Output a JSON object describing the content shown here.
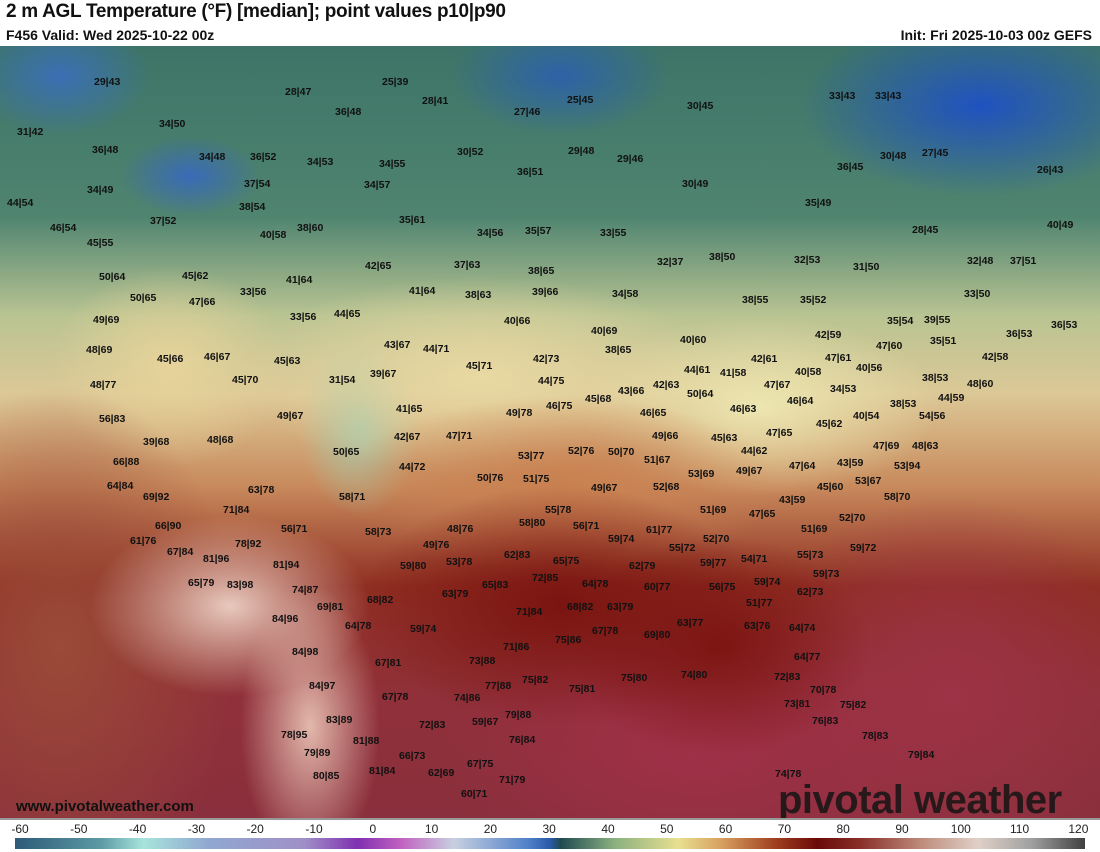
{
  "header": {
    "title": "2 m AGL Temperature (°F) [median]; point values p10|p90",
    "valid": "F456 Valid: Wed 2025-10-22 00z",
    "init": "Init: Fri 2025-10-03 00z GEFS"
  },
  "footer": {
    "url": "www.pivotalweather.com",
    "watermark": "pivotal weather"
  },
  "colorbar": {
    "unit": "°F",
    "ticks": [
      "-60",
      "-50",
      "-40",
      "-30",
      "-20",
      "-10",
      "0",
      "10",
      "20",
      "30",
      "40",
      "50",
      "60",
      "70",
      "80",
      "90",
      "100",
      "110",
      "120"
    ]
  },
  "points": [
    "29|43",
    "28|47",
    "25|39",
    "28|41",
    "36|48",
    "27|46",
    "25|45",
    "30|45",
    "33|43",
    "33|43",
    "31|42",
    "34|50",
    "36|48",
    "30|52",
    "29|48",
    "29|46",
    "34|48",
    "36|52",
    "34|53",
    "34|55",
    "36|45",
    "30|48",
    "27|45",
    "26|43",
    "36|51",
    "34|49",
    "37|54",
    "34|57",
    "30|49",
    "44|54",
    "38|54",
    "35|49",
    "37|52",
    "35|61",
    "40|49",
    "46|54",
    "40|58",
    "38|60",
    "34|56",
    "35|57",
    "33|55",
    "28|45",
    "45|55",
    "32|48",
    "37|51",
    "37|63",
    "42|65",
    "38|65",
    "32|37",
    "38|50",
    "32|53",
    "31|50",
    "50|64",
    "45|62",
    "41|64",
    "41|64",
    "38|63",
    "39|66",
    "34|58",
    "33|50",
    "50|65",
    "47|66",
    "33|56",
    "38|55",
    "35|52",
    "49|69",
    "33|56",
    "44|65",
    "40|66",
    "40|69",
    "35|54",
    "39|55",
    "36|53",
    "36|53",
    "42|59",
    "48|69",
    "45|66",
    "46|67",
    "43|67",
    "44|71",
    "40|60",
    "47|60",
    "35|51",
    "42|58",
    "45|63",
    "45|71",
    "42|73",
    "38|65",
    "42|61",
    "47|61",
    "40|56",
    "48|77",
    "45|70",
    "31|54",
    "39|67",
    "44|75",
    "44|61",
    "41|58",
    "40|58",
    "47|67",
    "34|53",
    "38|53",
    "48|60",
    "43|66",
    "42|63",
    "45|68",
    "50|64",
    "44|59",
    "46|64",
    "56|83",
    "49|67",
    "41|65",
    "49|78",
    "46|75",
    "46|65",
    "46|63",
    "40|54",
    "38|53",
    "54|56",
    "45|62",
    "39|68",
    "48|68",
    "42|67",
    "47|71",
    "49|66",
    "45|63",
    "47|65",
    "47|69",
    "48|63",
    "52|76",
    "50|70",
    "50|65",
    "53|77",
    "44|62",
    "66|88",
    "44|72",
    "47|64",
    "43|59",
    "49|67",
    "51|67",
    "53|94",
    "50|76",
    "51|75",
    "53|69",
    "53|67",
    "64|84",
    "63|78",
    "49|67",
    "52|68",
    "45|60",
    "58|70",
    "69|92",
    "58|71",
    "43|59",
    "71|84",
    "55|78",
    "51|69",
    "47|65",
    "52|70",
    "66|90",
    "56|71",
    "48|76",
    "58|80",
    "56|71",
    "61|77",
    "51|69",
    "61|76",
    "58|73",
    "59|74",
    "52|70",
    "78|92",
    "49|76",
    "55|72",
    "59|72",
    "67|84",
    "81|96",
    "62|83",
    "55|73",
    "54|71",
    "65|75",
    "81|94",
    "59|80",
    "53|78",
    "62|79",
    "59|77",
    "59|73",
    "72|85",
    "65|79",
    "83|98",
    "74|87",
    "65|83",
    "64|78",
    "60|77",
    "56|75",
    "59|74",
    "62|73",
    "63|79",
    "68|82",
    "69|81",
    "51|77",
    "71|84",
    "68|82",
    "63|79",
    "84|96",
    "64|78",
    "59|74",
    "63|77",
    "63|76",
    "64|74",
    "67|78",
    "69|80",
    "75|86",
    "71|86",
    "84|98",
    "73|88",
    "64|77",
    "67|81",
    "74|80",
    "75|80",
    "72|83",
    "75|82",
    "75|81",
    "77|88",
    "84|97",
    "70|78",
    "67|78",
    "74|86",
    "73|81",
    "75|82",
    "83|89",
    "79|88",
    "59|67",
    "72|83",
    "76|83",
    "78|95",
    "81|88",
    "76|84",
    "78|83",
    "79|89",
    "66|73",
    "79|84",
    "80|85",
    "81|84",
    "62|69",
    "67|75",
    "71|79",
    "74|78",
    "60|71"
  ]
}
